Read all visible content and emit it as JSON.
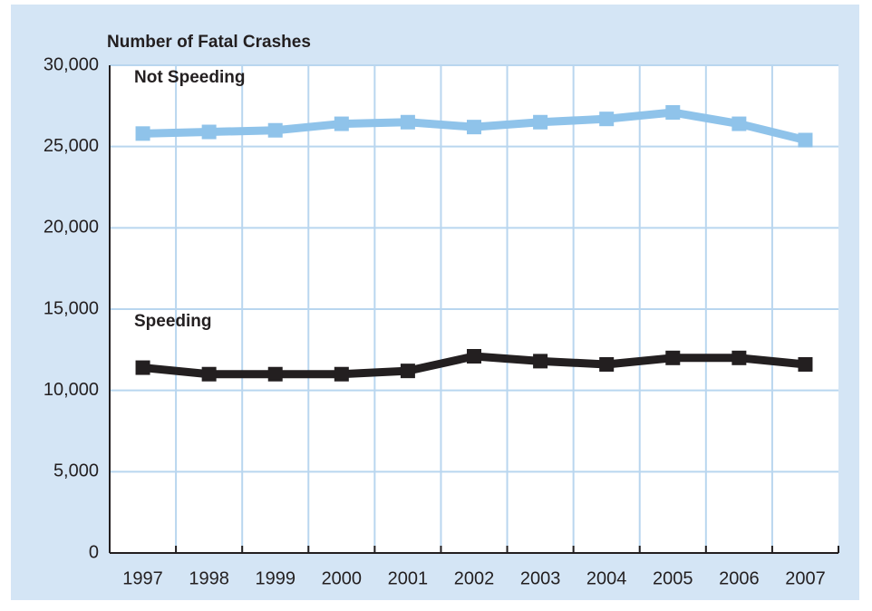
{
  "chart_data": {
    "type": "line",
    "y_axis_label": "Number of Fatal Crashes",
    "categories": [
      "1997",
      "1998",
      "1999",
      "2000",
      "2001",
      "2002",
      "2003",
      "2004",
      "2005",
      "2006",
      "2007"
    ],
    "series": [
      {
        "name": "Not Speeding",
        "color": "#8fc3ea",
        "values": [
          25800,
          25900,
          26000,
          26400,
          26500,
          26200,
          26500,
          26700,
          27100,
          26400,
          25400
        ]
      },
      {
        "name": "Speeding",
        "color": "#231f20",
        "values": [
          11400,
          11000,
          11000,
          11000,
          11200,
          12100,
          11800,
          11600,
          12000,
          12000,
          11600
        ]
      }
    ],
    "ylim": [
      0,
      30000
    ],
    "yticks": [
      0,
      {
        "value": 5000,
        "label": "5,000"
      },
      {
        "value": 10000,
        "label": "10,000"
      },
      {
        "value": 15000,
        "label": "15,000"
      },
      {
        "value": 20000,
        "label": "20,000"
      },
      {
        "value": 25000,
        "label": "25,000"
      },
      {
        "value": 30000,
        "label": "30,000"
      }
    ],
    "grid": true
  }
}
